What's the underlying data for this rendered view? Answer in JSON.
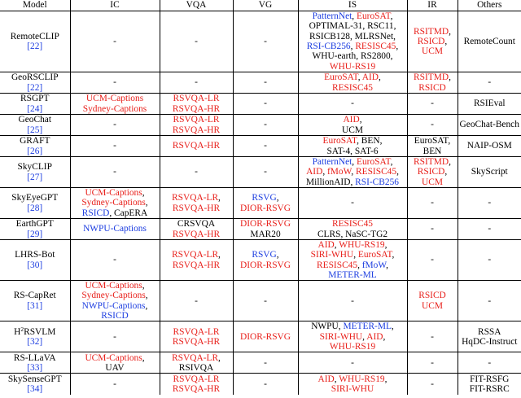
{
  "colors": {
    "red": "#e8201b",
    "blue": "#1c3de0",
    "black": "#000000"
  },
  "headers": [
    "Model",
    "IC",
    "VQA",
    "VG",
    "IS",
    "IR",
    "Others"
  ],
  "rows": [
    {
      "height": 75,
      "model": [
        {
          "t": "RemoteCLIP"
        }
      ],
      "ref": "[22]",
      "ic": [
        [
          {
            "t": "-",
            "c": "black"
          }
        ]
      ],
      "vqa": [
        [
          {
            "t": "-",
            "c": "black"
          }
        ]
      ],
      "vg": [
        [
          {
            "t": "-",
            "c": "black"
          }
        ]
      ],
      "is": [
        [
          {
            "t": "PatternNet",
            "c": "blue"
          },
          {
            "t": ", ",
            "c": "black"
          },
          {
            "t": "EuroSAT",
            "c": "red"
          },
          {
            "t": ",",
            "c": "black"
          }
        ],
        [
          {
            "t": "OPTIMAL-31, RSC11,",
            "c": "black"
          }
        ],
        [
          {
            "t": "RSICB128, MLRSNet,",
            "c": "black"
          }
        ],
        [
          {
            "t": "RSI-CB256",
            "c": "blue"
          },
          {
            "t": ", ",
            "c": "black"
          },
          {
            "t": "RESISC45",
            "c": "red"
          },
          {
            "t": ",",
            "c": "black"
          }
        ],
        [
          {
            "t": "WHU-earth, RS2800,",
            "c": "black"
          }
        ],
        [
          {
            "t": "WHU-RS19",
            "c": "red"
          }
        ]
      ],
      "ir": [
        [
          {
            "t": "RSITMD",
            "c": "red"
          },
          {
            "t": ",",
            "c": "black"
          }
        ],
        [
          {
            "t": "RSICD",
            "c": "red"
          },
          {
            "t": ",",
            "c": "black"
          }
        ],
        [
          {
            "t": "UCM",
            "c": "red"
          }
        ]
      ],
      "others": [
        [
          {
            "t": "RemoteCount",
            "c": "black"
          }
        ]
      ]
    },
    {
      "height": 26,
      "model": [
        {
          "t": "GeoRSCLIP"
        }
      ],
      "ref": "[22]",
      "ic": [
        [
          {
            "t": "-",
            "c": "black"
          }
        ]
      ],
      "vqa": [
        [
          {
            "t": "-",
            "c": "black"
          }
        ]
      ],
      "vg": [
        [
          {
            "t": "-",
            "c": "black"
          }
        ]
      ],
      "is": [
        [
          {
            "t": "EuroSAT",
            "c": "red"
          },
          {
            "t": ", ",
            "c": "black"
          },
          {
            "t": "AID",
            "c": "red"
          },
          {
            "t": ",",
            "c": "black"
          }
        ],
        [
          {
            "t": "RESISC45",
            "c": "red"
          }
        ]
      ],
      "ir": [
        [
          {
            "t": "RSITMD",
            "c": "red"
          },
          {
            "t": ",",
            "c": "black"
          }
        ],
        [
          {
            "t": "RSICD",
            "c": "red"
          }
        ]
      ],
      "others": [
        [
          {
            "t": "-",
            "c": "black"
          }
        ]
      ]
    },
    {
      "height": 26,
      "model": [
        {
          "t": "RSGPT"
        }
      ],
      "ref": "[24]",
      "ic": [
        [
          {
            "t": "UCM-Captions",
            "c": "red"
          }
        ],
        [
          {
            "t": "Sydney-Captions",
            "c": "red"
          }
        ]
      ],
      "vqa": [
        [
          {
            "t": "RSVQA-LR",
            "c": "red"
          }
        ],
        [
          {
            "t": "RSVQA-HR",
            "c": "red"
          }
        ]
      ],
      "vg": [
        [
          {
            "t": "-",
            "c": "black"
          }
        ]
      ],
      "is": [
        [
          {
            "t": "-",
            "c": "black"
          }
        ]
      ],
      "ir": [
        [
          {
            "t": "-",
            "c": "black"
          }
        ]
      ],
      "others": [
        [
          {
            "t": "RSIEval",
            "c": "black"
          }
        ]
      ]
    },
    {
      "height": 26,
      "model": [
        {
          "t": "GeoChat"
        }
      ],
      "ref": "[25]",
      "ic": [
        [
          {
            "t": "-",
            "c": "black"
          }
        ]
      ],
      "vqa": [
        [
          {
            "t": "RSVQA-LR",
            "c": "red"
          }
        ],
        [
          {
            "t": "RSVQA-HR",
            "c": "red"
          }
        ]
      ],
      "vg": [
        [
          {
            "t": "-",
            "c": "black"
          }
        ]
      ],
      "is": [
        [
          {
            "t": "AID",
            "c": "red"
          },
          {
            "t": ",",
            "c": "black"
          }
        ],
        [
          {
            "t": "UCM",
            "c": "black"
          }
        ]
      ],
      "ir": [
        [
          {
            "t": "-",
            "c": "black"
          }
        ]
      ],
      "others": [
        [
          {
            "t": "GeoChat-Bench",
            "c": "black"
          }
        ]
      ]
    },
    {
      "height": 26,
      "model": [
        {
          "t": "GRAFT"
        }
      ],
      "ref": "[26]",
      "ic": [
        [
          {
            "t": "-",
            "c": "black"
          }
        ]
      ],
      "vqa": [
        [
          {
            "t": "RSVQA-HR",
            "c": "red"
          }
        ]
      ],
      "vg": [
        [
          {
            "t": "-",
            "c": "black"
          }
        ]
      ],
      "is": [
        [
          {
            "t": "EuroSAT",
            "c": "red"
          },
          {
            "t": ", BEN,",
            "c": "black"
          }
        ],
        [
          {
            "t": "SAT-4, SAT-6",
            "c": "black"
          }
        ]
      ],
      "ir": [
        [
          {
            "t": "EuroSAT,",
            "c": "black"
          }
        ],
        [
          {
            "t": "BEN",
            "c": "black"
          }
        ]
      ],
      "others": [
        [
          {
            "t": "NAIP-OSM",
            "c": "black"
          }
        ]
      ]
    },
    {
      "height": 38,
      "model": [
        {
          "t": "SkyCLIP"
        }
      ],
      "ref": "[27]",
      "ic": [
        [
          {
            "t": "-",
            "c": "black"
          }
        ]
      ],
      "vqa": [
        [
          {
            "t": "-",
            "c": "black"
          }
        ]
      ],
      "vg": [
        [
          {
            "t": "-",
            "c": "black"
          }
        ]
      ],
      "is": [
        [
          {
            "t": "PatternNet",
            "c": "blue"
          },
          {
            "t": ", ",
            "c": "black"
          },
          {
            "t": "EuroSAT",
            "c": "red"
          },
          {
            "t": ",",
            "c": "black"
          }
        ],
        [
          {
            "t": "AID",
            "c": "red"
          },
          {
            "t": ", ",
            "c": "black"
          },
          {
            "t": "fMoW",
            "c": "red"
          },
          {
            "t": ", ",
            "c": "black"
          },
          {
            "t": "RESISC45",
            "c": "red"
          },
          {
            "t": ",",
            "c": "black"
          }
        ],
        [
          {
            "t": "MillionAID, ",
            "c": "black"
          },
          {
            "t": "RSI-CB256",
            "c": "blue"
          }
        ]
      ],
      "ir": [
        [
          {
            "t": "RSITMD",
            "c": "red"
          },
          {
            "t": ",",
            "c": "black"
          }
        ],
        [
          {
            "t": "RSICD",
            "c": "red"
          },
          {
            "t": ",",
            "c": "black"
          }
        ],
        [
          {
            "t": "UCM",
            "c": "red"
          }
        ]
      ],
      "others": [
        [
          {
            "t": "SkyScript",
            "c": "black"
          }
        ]
      ]
    },
    {
      "height": 38,
      "model": [
        {
          "t": "SkyEyeGPT"
        }
      ],
      "ref": "[28]",
      "ic": [
        [
          {
            "t": "UCM-Captions",
            "c": "red"
          },
          {
            "t": ",",
            "c": "black"
          }
        ],
        [
          {
            "t": "Sydney-Captions",
            "c": "red"
          },
          {
            "t": ",",
            "c": "black"
          }
        ],
        [
          {
            "t": "RSICD",
            "c": "blue"
          },
          {
            "t": ", CapERA",
            "c": "black"
          }
        ]
      ],
      "vqa": [
        [
          {
            "t": "RSVQA-LR",
            "c": "red"
          },
          {
            "t": ",",
            "c": "black"
          }
        ],
        [
          {
            "t": "RSVQA-HR",
            "c": "red"
          }
        ]
      ],
      "vg": [
        [
          {
            "t": "RSVG",
            "c": "blue"
          },
          {
            "t": ",",
            "c": "black"
          }
        ],
        [
          {
            "t": "DIOR-RSVG",
            "c": "red"
          }
        ]
      ],
      "is": [
        [
          {
            "t": "-",
            "c": "black"
          }
        ]
      ],
      "ir": [
        [
          {
            "t": "-",
            "c": "black"
          }
        ]
      ],
      "others": [
        [
          {
            "t": "-",
            "c": "black"
          }
        ]
      ]
    },
    {
      "height": 26,
      "model": [
        {
          "t": "EarthGPT"
        }
      ],
      "ref": "[29]",
      "ic": [
        [
          {
            "t": "NWPU-Captions",
            "c": "blue"
          }
        ]
      ],
      "vqa": [
        [
          {
            "t": "CRSVQA",
            "c": "black"
          }
        ],
        [
          {
            "t": "RSVQA-HR",
            "c": "red"
          }
        ]
      ],
      "vg": [
        [
          {
            "t": "DIOR-RSVG",
            "c": "red"
          }
        ],
        [
          {
            "t": "MAR20",
            "c": "black"
          }
        ]
      ],
      "is": [
        [
          {
            "t": "RESISC45",
            "c": "red"
          }
        ],
        [
          {
            "t": "CLRS, NaSC-TG2",
            "c": "black"
          }
        ]
      ],
      "ir": [
        [
          {
            "t": "-",
            "c": "black"
          }
        ]
      ],
      "others": [
        [
          {
            "t": "-",
            "c": "black"
          }
        ]
      ]
    },
    {
      "height": 50,
      "model": [
        {
          "t": "LHRS-Bot"
        }
      ],
      "ref": "[30]",
      "ic": [
        [
          {
            "t": "-",
            "c": "black"
          }
        ]
      ],
      "vqa": [
        [
          {
            "t": "RSVQA-LR",
            "c": "red"
          },
          {
            "t": ",",
            "c": "black"
          }
        ],
        [
          {
            "t": "RSVQA-HR",
            "c": "red"
          }
        ]
      ],
      "vg": [
        [
          {
            "t": "RSVG",
            "c": "blue"
          },
          {
            "t": ",",
            "c": "black"
          }
        ],
        [
          {
            "t": "DIOR-RSVG",
            "c": "red"
          }
        ]
      ],
      "is": [
        [
          {
            "t": "AID",
            "c": "red"
          },
          {
            "t": ", ",
            "c": "black"
          },
          {
            "t": "WHU-RS19",
            "c": "red"
          },
          {
            "t": ",",
            "c": "black"
          }
        ],
        [
          {
            "t": "SIRI-WHU",
            "c": "red"
          },
          {
            "t": ", ",
            "c": "black"
          },
          {
            "t": "EuroSAT",
            "c": "red"
          },
          {
            "t": ",",
            "c": "black"
          }
        ],
        [
          {
            "t": "RESISC45",
            "c": "red"
          },
          {
            "t": ", ",
            "c": "black"
          },
          {
            "t": "fMoW",
            "c": "blue"
          },
          {
            "t": ",",
            "c": "black"
          }
        ],
        [
          {
            "t": "METER-ML",
            "c": "blue"
          }
        ]
      ],
      "ir": [
        [
          {
            "t": "-",
            "c": "black"
          }
        ]
      ],
      "others": [
        [
          {
            "t": "-",
            "c": "black"
          }
        ]
      ]
    },
    {
      "height": 50,
      "model": [
        {
          "t": "RS-CapRet"
        }
      ],
      "ref": "[31]",
      "ic": [
        [
          {
            "t": "UCM-Captions",
            "c": "red"
          },
          {
            "t": ",",
            "c": "black"
          }
        ],
        [
          {
            "t": "Sydney-Captions",
            "c": "red"
          },
          {
            "t": ",",
            "c": "black"
          }
        ],
        [
          {
            "t": "NWPU-Captions",
            "c": "blue"
          },
          {
            "t": ",",
            "c": "black"
          }
        ],
        [
          {
            "t": "RSICD",
            "c": "blue"
          }
        ]
      ],
      "vqa": [
        [
          {
            "t": "-",
            "c": "black"
          }
        ]
      ],
      "vg": [
        [
          {
            "t": "-",
            "c": "black"
          }
        ]
      ],
      "is": [
        [
          {
            "t": "-",
            "c": "black"
          }
        ]
      ],
      "ir": [
        [
          {
            "t": "RSICD",
            "c": "red"
          }
        ],
        [
          {
            "t": "UCM",
            "c": "red"
          }
        ]
      ],
      "others": [
        [
          {
            "t": "-",
            "c": "black"
          }
        ]
      ]
    },
    {
      "height": 38,
      "model": [
        {
          "t": "H"
        },
        {
          "t": "2",
          "sup": true
        },
        {
          "t": "RSVLM"
        }
      ],
      "ref": "[32]",
      "ic": [
        [
          {
            "t": "-",
            "c": "black"
          }
        ]
      ],
      "vqa": [
        [
          {
            "t": "RSVQA-LR",
            "c": "red"
          }
        ],
        [
          {
            "t": "RSVQA-HR",
            "c": "red"
          }
        ]
      ],
      "vg": [
        [
          {
            "t": "DIOR-RSVG",
            "c": "red"
          }
        ]
      ],
      "is": [
        [
          {
            "t": "NWPU, ",
            "c": "black"
          },
          {
            "t": "METER-ML",
            "c": "blue"
          },
          {
            "t": ",",
            "c": "black"
          }
        ],
        [
          {
            "t": "SIRI-WHU",
            "c": "red"
          },
          {
            "t": ", ",
            "c": "black"
          },
          {
            "t": "AID",
            "c": "red"
          },
          {
            "t": ",",
            "c": "black"
          }
        ],
        [
          {
            "t": "WHU-RS19",
            "c": "red"
          }
        ]
      ],
      "ir": [
        [
          {
            "t": "-",
            "c": "black"
          }
        ]
      ],
      "others": [
        [
          {
            "t": "RSSA",
            "c": "black"
          }
        ],
        [
          {
            "t": "HqDC-Instruct",
            "c": "black"
          }
        ]
      ]
    },
    {
      "height": 26,
      "model": [
        {
          "t": "RS-LLaVA"
        }
      ],
      "ref": "[33]",
      "ic": [
        [
          {
            "t": "UCM-Captions",
            "c": "red"
          },
          {
            "t": ",",
            "c": "black"
          }
        ],
        [
          {
            "t": "UAV",
            "c": "black"
          }
        ]
      ],
      "vqa": [
        [
          {
            "t": "RSVQA-LR",
            "c": "red"
          },
          {
            "t": ",",
            "c": "black"
          }
        ],
        [
          {
            "t": "RSIVQA",
            "c": "black"
          }
        ]
      ],
      "vg": [
        [
          {
            "t": "-",
            "c": "black"
          }
        ]
      ],
      "is": [
        [
          {
            "t": "-",
            "c": "black"
          }
        ]
      ],
      "ir": [
        [
          {
            "t": "-",
            "c": "black"
          }
        ]
      ],
      "others": [
        [
          {
            "t": "-",
            "c": "black"
          }
        ]
      ]
    },
    {
      "height": 26,
      "model": [
        {
          "t": "SkySenseGPT"
        }
      ],
      "ref": "[34]",
      "ic": [
        [
          {
            "t": "-",
            "c": "black"
          }
        ]
      ],
      "vqa": [
        [
          {
            "t": "RSVQA-LR",
            "c": "red"
          }
        ],
        [
          {
            "t": "RSVQA-HR",
            "c": "red"
          }
        ]
      ],
      "vg": [
        [
          {
            "t": "-",
            "c": "black"
          }
        ]
      ],
      "is": [
        [
          {
            "t": "AID",
            "c": "red"
          },
          {
            "t": ", ",
            "c": "black"
          },
          {
            "t": "WHU-RS19",
            "c": "red"
          },
          {
            "t": ",",
            "c": "black"
          }
        ],
        [
          {
            "t": "SIRI-WHU",
            "c": "red"
          }
        ]
      ],
      "ir": [
        [
          {
            "t": "-",
            "c": "black"
          }
        ]
      ],
      "others": [
        [
          {
            "t": "FIT-RSFG",
            "c": "black"
          }
        ],
        [
          {
            "t": "FIT-RSRC",
            "c": "black"
          }
        ]
      ]
    }
  ]
}
